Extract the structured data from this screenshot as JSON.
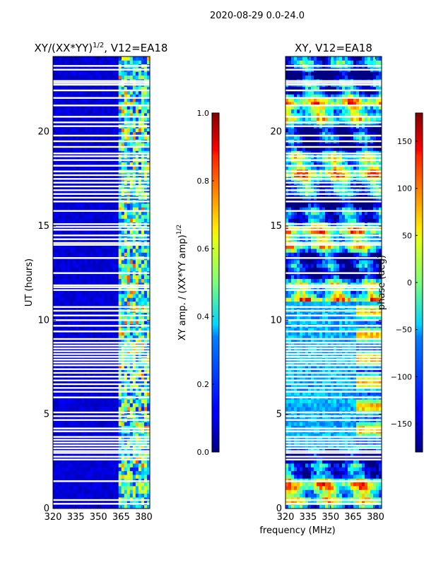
{
  "figure_title": "2020-08-29 0.0-24.0",
  "chart_data": [
    {
      "type": "heatmap",
      "title_main": "XY/(XX*YY)",
      "title_exp": "1/2",
      "title_suffix": ", V12=EA18",
      "xlabel": "",
      "ylabel": "UT (hours)",
      "xlim": [
        320,
        384
      ],
      "ylim": [
        0,
        24
      ],
      "xticks": [
        320,
        335,
        350,
        365,
        380
      ],
      "yticks": [
        0,
        5,
        10,
        15,
        20
      ],
      "colorbar": {
        "label_main": "XY amp. / (XX*YY amp)",
        "label_exp": "1/2",
        "range": [
          0.0,
          1.0
        ],
        "ticks": [
          "0.0",
          "0.2",
          "0.4",
          "0.6",
          "0.8",
          "1.0"
        ],
        "tick_values": [
          0.0,
          0.2,
          0.4,
          0.6,
          0.8,
          1.0
        ]
      }
    },
    {
      "type": "heatmap",
      "title": "XY, V12=EA18",
      "xlabel": "frequency (MHz)",
      "ylabel": "",
      "xlim": [
        320,
        384
      ],
      "ylim": [
        0,
        24
      ],
      "xticks": [
        320,
        335,
        350,
        365,
        380
      ],
      "yticks": [
        0,
        5,
        10,
        15,
        20
      ],
      "colorbar": {
        "label": "phase (deg)",
        "range": [
          -180,
          180
        ],
        "ticks": [
          "−150",
          "−100",
          "−50",
          "0",
          "50",
          "100",
          "150"
        ],
        "tick_values": [
          -150,
          -100,
          -50,
          0,
          50,
          100,
          150
        ]
      }
    }
  ],
  "flagged_hours": [
    0.25,
    0.45,
    1.45,
    2.6,
    2.75,
    2.95,
    3.05,
    3.2,
    3.35,
    3.5,
    3.65,
    3.8,
    4.1,
    4.25,
    4.7,
    4.9,
    5.1,
    5.9,
    6.2,
    6.4,
    6.6,
    6.8,
    7.0,
    7.2,
    7.4,
    7.6,
    7.75,
    7.9,
    8.05,
    8.2,
    8.35,
    8.5,
    8.65,
    8.8,
    9.0,
    9.4,
    9.7,
    10.0,
    10.25,
    10.5,
    10.7,
    11.6,
    11.75,
    11.85,
    12.5,
    13.3,
    14.0,
    14.1,
    14.3,
    14.5,
    14.8,
    14.95,
    15.1,
    15.8,
    16.3,
    16.5,
    16.7,
    16.9,
    17.1,
    17.3,
    17.5,
    17.7,
    17.9,
    18.2,
    18.5,
    18.7,
    18.85,
    19.2,
    19.5,
    19.8,
    20.3,
    20.5,
    20.8,
    21.4,
    21.8,
    22.2,
    22.5,
    22.6,
    22.7,
    23.3,
    23.5
  ],
  "amp_bright_band_mhz": [
    363,
    384
  ]
}
